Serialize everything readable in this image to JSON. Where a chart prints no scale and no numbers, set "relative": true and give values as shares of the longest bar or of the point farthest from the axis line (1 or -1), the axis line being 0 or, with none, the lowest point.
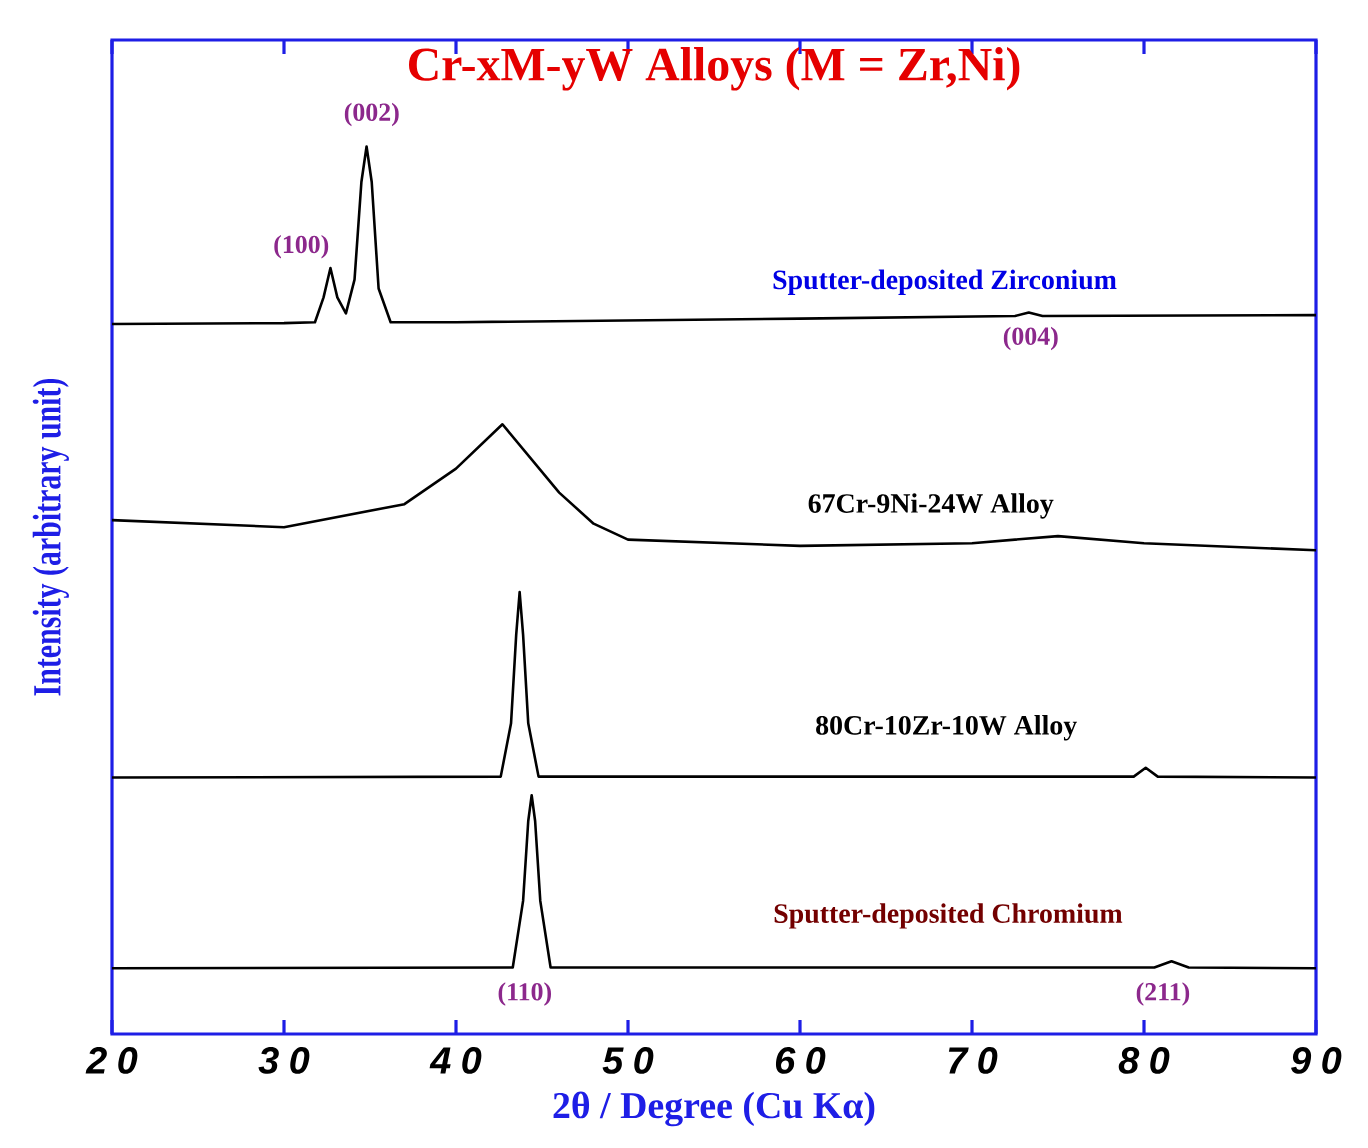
{
  "chart_data": {
    "type": "line",
    "title": "Cr-xM-yW Alloys (M = Zr,Ni)",
    "xlabel": "2θ / Degree (Cu Kα)",
    "ylabel": "Intensity (arbitrary unit)",
    "relative": true,
    "xlim": [
      20,
      90
    ],
    "xticks": [
      20,
      30,
      40,
      50,
      60,
      70,
      80,
      90
    ],
    "marker": "none",
    "line_style": "solid",
    "series": [
      {
        "name": "Sputter-deposited Zirconium",
        "color": "#000000",
        "x": [
          20,
          30,
          31.8,
          32.3,
          32.7,
          33.1,
          33.6,
          34.1,
          34.5,
          34.8,
          35.1,
          35.5,
          36.2,
          40,
          60,
          72.5,
          73.3,
          74.1,
          90
        ],
        "values": [
          0.8,
          0.801,
          0.802,
          0.83,
          0.863,
          0.83,
          0.812,
          0.85,
          0.96,
          1.0,
          0.96,
          0.84,
          0.802,
          0.802,
          0.806,
          0.809,
          0.813,
          0.809,
          0.81
        ]
      },
      {
        "name": "67Cr-9Ni-24W Alloy",
        "color": "#000000",
        "x": [
          20,
          30,
          37,
          40,
          42.7,
          46,
          48,
          50,
          60,
          70,
          75,
          80,
          90
        ],
        "values": [
          0.579,
          0.571,
          0.597,
          0.637,
          0.687,
          0.61,
          0.575,
          0.557,
          0.55,
          0.553,
          0.561,
          0.553,
          0.545
        ]
      },
      {
        "name": "80Cr-10Zr-10W Alloy",
        "color": "#000000",
        "x": [
          20,
          42.6,
          43.2,
          43.5,
          43.7,
          43.9,
          44.2,
          44.8,
          79.4,
          80.1,
          80.8,
          90
        ],
        "values": [
          0.289,
          0.29,
          0.35,
          0.45,
          0.498,
          0.45,
          0.35,
          0.29,
          0.29,
          0.3,
          0.29,
          0.289
        ]
      },
      {
        "name": "Sputter-deposited Chromium",
        "color": "#000000",
        "x": [
          20,
          43.3,
          43.9,
          44.2,
          44.4,
          44.6,
          44.9,
          45.5,
          80.6,
          81.6,
          82.6,
          90
        ],
        "values": [
          0.074,
          0.075,
          0.15,
          0.24,
          0.269,
          0.24,
          0.15,
          0.075,
          0.075,
          0.082,
          0.075,
          0.074
        ]
      }
    ],
    "annotations": [
      {
        "text": "(100)",
        "x": 32.7,
        "y": 0.863
      },
      {
        "text": "(002)",
        "x": 34.8,
        "y": 1.0
      },
      {
        "text": "(004)",
        "x": 73.3,
        "y": 0.813
      },
      "(110)",
      {
        "text": "(211)",
        "x": 81.6,
        "y": 0.082
      }
    ]
  }
}
